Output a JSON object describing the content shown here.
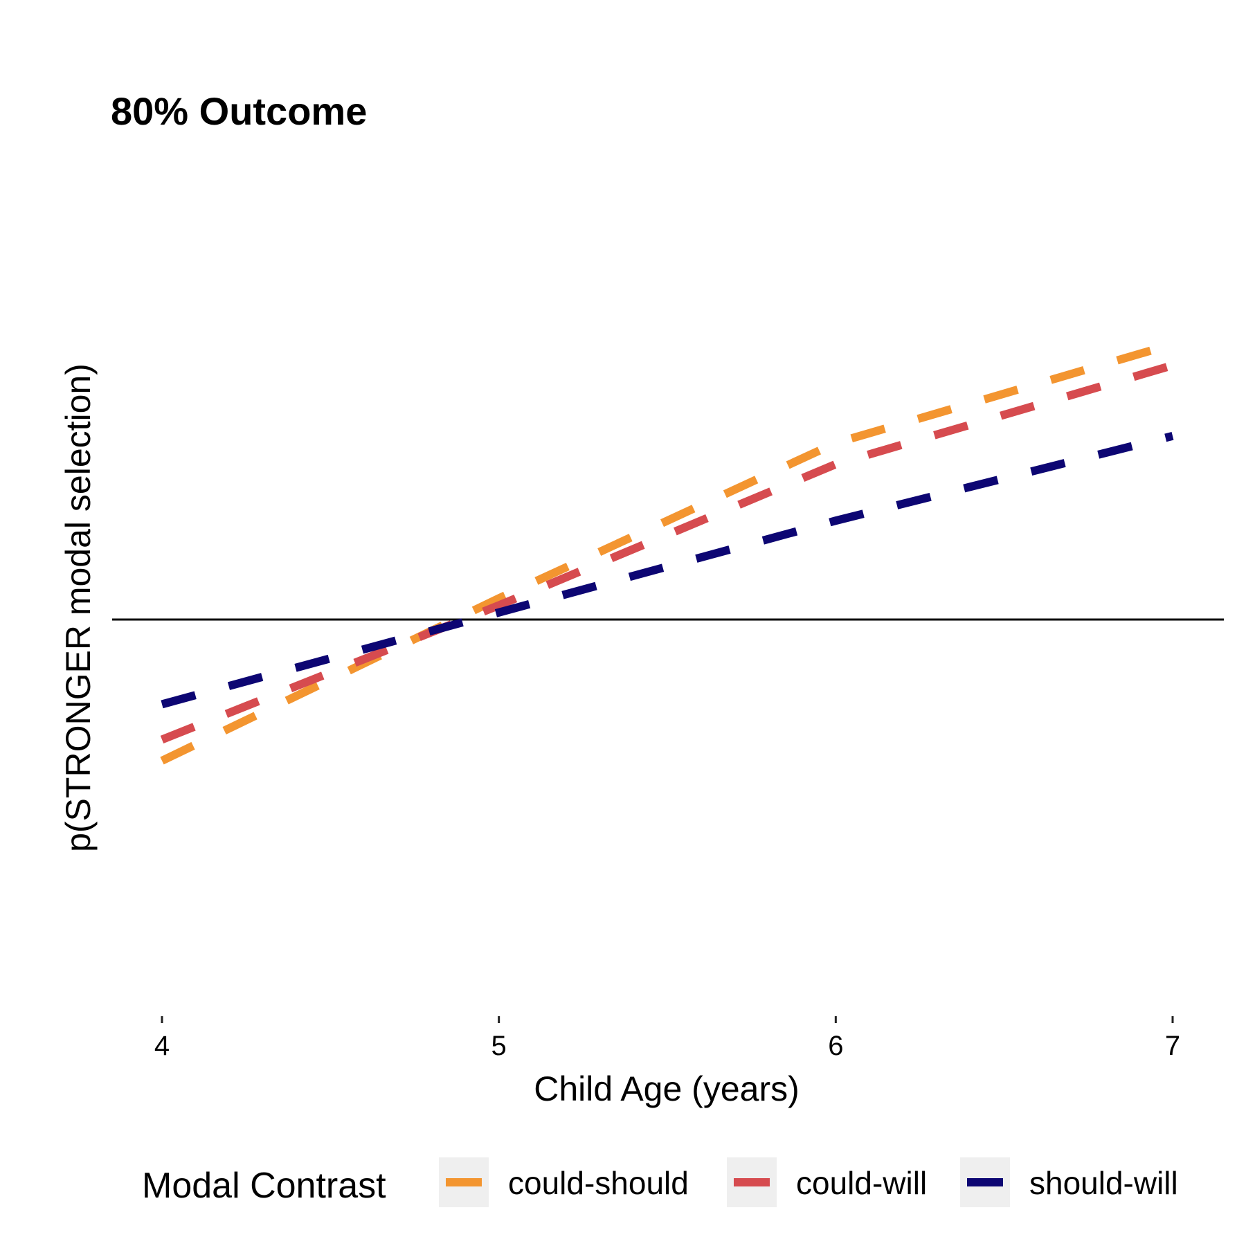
{
  "chart_data": {
    "type": "line",
    "title": "80% Outcome",
    "xlabel": "Child Age (years)",
    "ylabel": "p(STRONGER modal selection)",
    "xlim": [
      4,
      7
    ],
    "ylim": [
      0,
      1
    ],
    "x_ticks": [
      "4",
      "5",
      "6",
      "7"
    ],
    "grid": false,
    "reference_line_y": 0.5,
    "line_style": "dashed",
    "legend": {
      "title": "Modal Contrast",
      "position": "bottom"
    },
    "x": [
      4,
      5,
      6,
      7
    ],
    "series": [
      {
        "name": "could-should",
        "color": "#F39530",
        "values": [
          0.3,
          0.53,
          0.75,
          0.89
        ]
      },
      {
        "name": "could-will",
        "color": "#D64B4F",
        "values": [
          0.33,
          0.52,
          0.72,
          0.86
        ]
      },
      {
        "name": "should-will",
        "color": "#0D0673",
        "values": [
          0.38,
          0.51,
          0.64,
          0.76
        ]
      }
    ]
  }
}
